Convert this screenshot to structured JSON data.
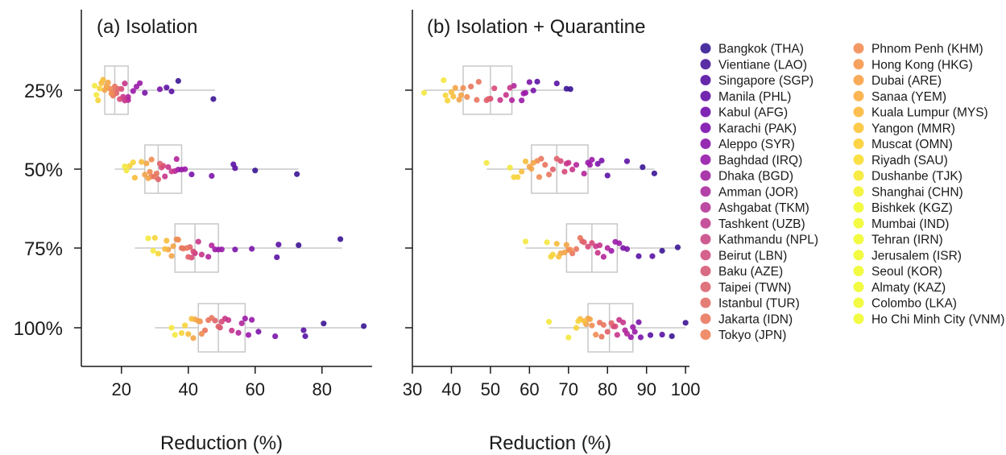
{
  "chart_data": [
    {
      "type": "box-strip",
      "title": "(a) Isolation",
      "xlabel": "Reduction (%)",
      "ylabel": "",
      "categories": [
        "25%",
        "50%",
        "75%",
        "100%"
      ],
      "xlim": [
        8,
        95
      ],
      "xticks": [
        20,
        40,
        60,
        80
      ],
      "boxes": [
        {
          "category": "25%",
          "whisker_low": 13,
          "q1": 15,
          "median": 18,
          "q3": 22,
          "whisker_high": 48
        },
        {
          "category": "50%",
          "whisker_low": 18,
          "q1": 27,
          "median": 31,
          "q3": 38,
          "whisker_high": 73
        },
        {
          "category": "75%",
          "whisker_low": 24,
          "q1": 36,
          "median": 42,
          "q3": 49,
          "whisker_high": 86
        },
        {
          "category": "100%",
          "whisker_low": 30,
          "q1": 43,
          "median": 49,
          "q3": 57,
          "whisker_high": 93
        }
      ],
      "points": {
        "25%": [
          47.5,
          37.0,
          35.0,
          33.5,
          31.5,
          27.0,
          25.5,
          24.5,
          23.5,
          22.0,
          22.0,
          21.0,
          21.0,
          20.5,
          20.0,
          19.5,
          19.0,
          18.5,
          18.0,
          17.5,
          17.5,
          17.0,
          16.5,
          16.0,
          15.5,
          15.0,
          14.5,
          14.0,
          13.5,
          13.0,
          12.5,
          12.0
        ],
        "50%": [
          72.5,
          60.0,
          54.0,
          53.5,
          47.0,
          41.0,
          39.0,
          38.0,
          37.0,
          36.5,
          36.0,
          35.0,
          34.0,
          33.0,
          32.5,
          32.0,
          31.5,
          31.0,
          30.5,
          30.0,
          29.0,
          29.0,
          28.5,
          28.0,
          27.5,
          27.0,
          26.0,
          24.0,
          23.5,
          22.5,
          21.5,
          21.0
        ],
        "75%": [
          85.5,
          73.0,
          67.0,
          66.5,
          59.0,
          54.0,
          50.0,
          49.0,
          48.0,
          47.0,
          46.0,
          44.0,
          43.0,
          42.0,
          41.5,
          41.0,
          40.5,
          40.0,
          39.5,
          38.5,
          38.0,
          37.0,
          36.5,
          35.5,
          35.0,
          34.0,
          33.5,
          33.0,
          31.0,
          30.0,
          29.5,
          28.0
        ],
        "100%": [
          92.5,
          80.5,
          75.0,
          74.5,
          66.0,
          61.0,
          59.0,
          58.0,
          57.0,
          56.0,
          55.0,
          53.0,
          52.0,
          51.0,
          50.0,
          49.5,
          49.0,
          48.0,
          47.0,
          46.0,
          45.0,
          44.0,
          43.5,
          43.0,
          42.0,
          41.5,
          41.0,
          40.0,
          39.0,
          38.0,
          36.0,
          35.0
        ]
      }
    },
    {
      "type": "box-strip",
      "title": "(b) Isolation + Quarantine",
      "xlabel": "Reduction (%)",
      "ylabel": "",
      "categories": [
        "25%",
        "50%",
        "75%",
        "100%"
      ],
      "xlim": [
        30,
        101
      ],
      "xticks": [
        30,
        40,
        50,
        60,
        70,
        80,
        90,
        100
      ],
      "boxes": [
        {
          "category": "25%",
          "whisker_low": 33,
          "q1": 43,
          "median": 50,
          "q3": 55.5,
          "whisker_high": 71
        },
        {
          "category": "50%",
          "whisker_low": 49,
          "q1": 60.5,
          "median": 67,
          "q3": 75,
          "whisker_high": 92
        },
        {
          "category": "75%",
          "whisker_low": 59,
          "q1": 69.5,
          "median": 76,
          "q3": 82.5,
          "whisker_high": 98
        },
        {
          "category": "100%",
          "whisker_low": 65,
          "q1": 75,
          "median": 80.5,
          "q3": 86.5,
          "whisker_high": 100
        }
      ],
      "points": {
        "25%": [
          70.5,
          69.5,
          67.0,
          62.0,
          61.0,
          60.0,
          59.0,
          58.5,
          58.0,
          56.0,
          55.5,
          55.0,
          54.0,
          52.5,
          51.0,
          50.0,
          49.5,
          49.0,
          47.0,
          46.5,
          45.0,
          44.0,
          43.0,
          42.5,
          42.0,
          41.0,
          40.5,
          40.0,
          39.0,
          38.5,
          38.0,
          33.0
        ],
        "50%": [
          92.0,
          89.0,
          85.0,
          80.0,
          78.5,
          77.5,
          76.0,
          75.5,
          75.0,
          74.0,
          72.0,
          71.0,
          70.0,
          69.5,
          69.0,
          68.0,
          67.0,
          66.0,
          65.0,
          64.0,
          63.0,
          62.5,
          62.0,
          61.0,
          60.5,
          60.0,
          59.0,
          58.0,
          57.0,
          56.0,
          55.0,
          49.0
        ],
        "75%": [
          98.0,
          94.0,
          91.5,
          88.0,
          85.0,
          84.0,
          83.0,
          82.0,
          81.0,
          80.0,
          79.0,
          78.0,
          77.5,
          77.0,
          76.0,
          75.0,
          74.0,
          73.5,
          73.0,
          72.0,
          71.0,
          70.5,
          70.0,
          69.5,
          69.0,
          68.0,
          67.5,
          67.0,
          66.0,
          65.5,
          64.5,
          59.0
        ],
        "100%": [
          100.0,
          96.5,
          94.0,
          91.0,
          88.5,
          88.0,
          87.0,
          86.5,
          86.0,
          85.0,
          84.5,
          84.0,
          83.0,
          82.5,
          82.0,
          81.5,
          81.0,
          80.0,
          79.0,
          78.5,
          78.0,
          77.0,
          76.0,
          75.5,
          75.0,
          74.5,
          74.0,
          73.0,
          72.5,
          72.0,
          70.0,
          65.0
        ]
      }
    }
  ],
  "legend": {
    "placement": "right",
    "entries": [
      {
        "label": "Bangkok (THA)",
        "color": "#2c0d8e"
      },
      {
        "label": "Vientiane (LAO)",
        "color": "#3d0995"
      },
      {
        "label": "Singapore (SGP)",
        "color": "#4c049b"
      },
      {
        "label": "Manila (PHL)",
        "color": "#5a01a1"
      },
      {
        "label": "Kabul (AFG)",
        "color": "#6800a7"
      },
      {
        "label": "Karachi (PAK)",
        "color": "#7501a8"
      },
      {
        "label": "Aleppo (SYR)",
        "color": "#8306a6"
      },
      {
        "label": "Baghdad (IRQ)",
        "color": "#8f0da4"
      },
      {
        "label": "Dhaka (BGD)",
        "color": "#9b179e"
      },
      {
        "label": "Amman (JOR)",
        "color": "#a62198"
      },
      {
        "label": "Ashgabat (TKM)",
        "color": "#b12a90"
      },
      {
        "label": "Tashkent (UZB)",
        "color": "#bb3488"
      },
      {
        "label": "Kathmandu (NPL)",
        "color": "#c43e7f"
      },
      {
        "label": "Beirut (LBN)",
        "color": "#cc4778"
      },
      {
        "label": "Baku (AZE)",
        "color": "#d4516f"
      },
      {
        "label": "Taipei (TWN)",
        "color": "#db5c67"
      },
      {
        "label": "Istanbul (TUR)",
        "color": "#e1665f"
      },
      {
        "label": "Jakarta (IDN)",
        "color": "#e87158"
      },
      {
        "label": "Tokyo (JPN)",
        "color": "#ed7b51"
      },
      {
        "label": "Phnom Penh (KHM)",
        "color": "#f2864a"
      },
      {
        "label": "Hong Kong (HKG)",
        "color": "#f69143"
      },
      {
        "label": "Dubai (ARE)",
        "color": "#f99c3c"
      },
      {
        "label": "Sanaa (YEM)",
        "color": "#fca836"
      },
      {
        "label": "Kuala Lumpur (MYS)",
        "color": "#fdb431"
      },
      {
        "label": "Yangon (MMR)",
        "color": "#fdc12c"
      },
      {
        "label": "Muscat (OMN)",
        "color": "#fccd26"
      },
      {
        "label": "Riyadh (SAU)",
        "color": "#f9da24"
      },
      {
        "label": "Dushanbe (TJK)",
        "color": "#f6e726"
      },
      {
        "label": "Shanghai (CHN)",
        "color": "#f2f227"
      },
      {
        "label": "Bishkek (KGZ)",
        "color": "#f0f921"
      },
      {
        "label": "Mumbai (IND)",
        "color": "#f0f921"
      },
      {
        "label": "Tehran (IRN)",
        "color": "#f0f921"
      },
      {
        "label": "Jerusalem (ISR)",
        "color": "#f0f921"
      },
      {
        "label": "Seoul (KOR)",
        "color": "#f0f921"
      },
      {
        "label": "Almaty (KAZ)",
        "color": "#f0f921"
      },
      {
        "label": "Colombo (LKA)",
        "color": "#f0f921"
      },
      {
        "label": "Ho Chi Minh City (VNM)",
        "color": "#f0f921"
      }
    ]
  },
  "style": {
    "box_color": "#c8c8c8",
    "axis_color": "#1a1a1a",
    "point_palette": [
      "#3b1494",
      "#5a12a3",
      "#7a14aa",
      "#9a1aa8",
      "#b3259b",
      "#c8348a",
      "#d64a79",
      "#e0606a",
      "#e8765e",
      "#ef8c52",
      "#f4a447",
      "#f7bd3c",
      "#f6d43a",
      "#f3e83f"
    ]
  }
}
